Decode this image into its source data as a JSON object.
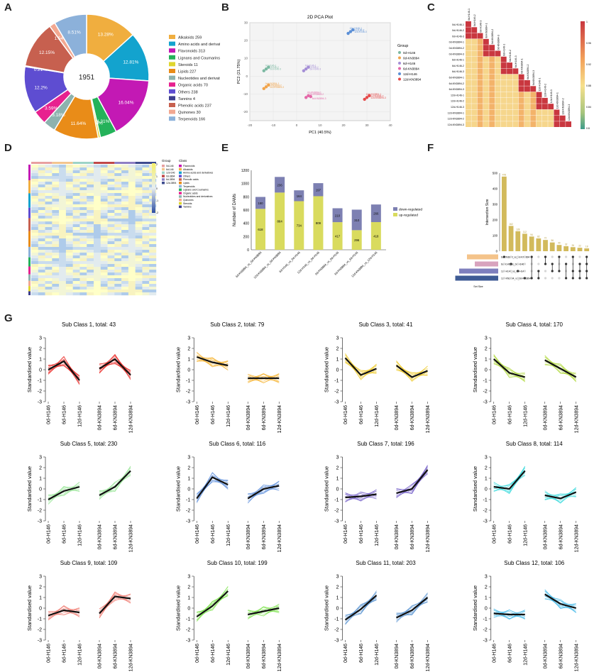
{
  "panel_labels": [
    "A",
    "B",
    "C",
    "D",
    "E",
    "F",
    "G"
  ],
  "colors": {
    "alkaloids": "#F0AE3F",
    "amino": "#13A3CE",
    "flavonoids": "#C319B4",
    "lignans": "#24B25A",
    "steroids": "#DFD62E",
    "lipids": "#E98C18",
    "nucleotides": "#8DB2AE",
    "organic": "#E7218F",
    "others": "#5E4DD1",
    "tannins": "#3C3D8E",
    "phenolic": "#C7604F",
    "quinones": "#F2A891",
    "terpenoids": "#8CB1DA"
  },
  "chart_data": [
    {
      "id": "A",
      "type": "pie",
      "title": "",
      "center_label": "1951",
      "slices": [
        {
          "name": "Alkaloids 259",
          "value": 13.28,
          "label": "13.28%",
          "color": "#F0AE3F"
        },
        {
          "name": "Amino acids and derivatives 250",
          "value": 12.81,
          "label": "12.81%",
          "color": "#13A3CE"
        },
        {
          "name": "Flavonoids 313",
          "value": 16.04,
          "label": "16.04%",
          "color": "#C319B4"
        },
        {
          "name": "Lignans and Coumarins 84",
          "value": 4.31,
          "label": "4.31%",
          "color": "#24B25A"
        },
        {
          "name": "Steroids 11",
          "value": 0.56,
          "label": "0.56%",
          "color": "#DFD62E"
        },
        {
          "name": "Lipids 227",
          "value": 11.64,
          "label": "11.64%",
          "color": "#E98C18"
        },
        {
          "name": "Nucleotides and derivatives 62",
          "value": 3.18,
          "label": "3.18%",
          "color": "#8DB2AE"
        },
        {
          "name": "Organic acids 70",
          "value": 3.59,
          "label": "3.59%",
          "color": "#E7218F"
        },
        {
          "name": "Others 238",
          "value": 12.2,
          "label": "12.2%",
          "color": "#5E4DD1"
        },
        {
          "name": "Tannins 4",
          "value": 0.21,
          "label": "0.21%",
          "color": "#3C3D8E"
        },
        {
          "name": "Phenolic acids 237",
          "value": 12.15,
          "label": "12.15%",
          "color": "#C7604F"
        },
        {
          "name": "Quinones 30",
          "value": 1.54,
          "label": "1.54%",
          "color": "#F2A891"
        },
        {
          "name": "Terpenoids 166",
          "value": 8.51,
          "label": "8.51%",
          "color": "#8CB1DA"
        }
      ]
    },
    {
      "id": "B",
      "type": "scatter",
      "title": "2D PCA Plot",
      "xlabel": "PC1 (40.5%)",
      "ylabel": "PC2 (21.75%)",
      "xlim": [
        -20,
        40
      ],
      "ylim": [
        -25,
        30
      ],
      "xticks": [
        -20,
        -10,
        0,
        10,
        20,
        30,
        40
      ],
      "yticks": [
        -20,
        -10,
        0,
        10,
        20,
        30
      ],
      "legend_title": "Group",
      "series": [
        {
          "name": "0d-H146",
          "color": "#7CB9A2",
          "points": [
            [
              -14,
              3
            ],
            [
              -13,
              4
            ],
            [
              -12,
              5
            ]
          ],
          "labels": [
            "0d-H146-1",
            "0d-H146-2",
            "0d-H146-3"
          ]
        },
        {
          "name": "0d-KN3894",
          "color": "#F1A44B",
          "points": [
            [
              -14,
              -7
            ],
            [
              -13,
              -6
            ],
            [
              -12,
              -5
            ]
          ],
          "labels": [
            "0d-KN3894-1",
            "0d-KN3894-2",
            "0d-KN3894-3"
          ]
        },
        {
          "name": "6d-H146",
          "color": "#A58FD6",
          "points": [
            [
              3,
              3
            ],
            [
              4,
              4
            ],
            [
              5,
              5
            ]
          ],
          "labels": [
            "6d-H146-1",
            "6d-H146-2",
            "6d-H146-3"
          ]
        },
        {
          "name": "6d-KN3894",
          "color": "#E468A8",
          "points": [
            [
              4,
              -12
            ],
            [
              5,
              -11
            ],
            [
              6,
              -11.5
            ]
          ],
          "labels": [
            "6d-KN3894-1",
            "6d-KN3894-2",
            "6d-KN3894-3"
          ]
        },
        {
          "name": "12d-H146",
          "color": "#5B8FD6",
          "points": [
            [
              22,
              24
            ],
            [
              23,
              25
            ],
            [
              24,
              26
            ]
          ],
          "labels": [
            "12d-H146-1",
            "12d-H146-2",
            "12d-H146-3"
          ]
        },
        {
          "name": "12d-KN3894",
          "color": "#E54A4A",
          "points": [
            [
              29,
              -13
            ],
            [
              30,
              -12
            ],
            [
              31,
              -11
            ]
          ],
          "labels": [
            "12d-KN3894-1",
            "12d-KN3894-2",
            "12d-KN3894-3"
          ]
        }
      ]
    },
    {
      "id": "C",
      "type": "heatmap",
      "title": "",
      "labels": [
        "0d-H146-1",
        "0d-H146-2",
        "0d-H146-3",
        "0d-KN3894-1",
        "0d-KN3894-2",
        "0d-KN3894-3",
        "6d-H146-1",
        "6d-H146-2",
        "6d-H146-3",
        "6d-KN3894-1",
        "6d-KN3894-2",
        "6d-KN3894-3",
        "12d-H146-1",
        "12d-H146-2",
        "12d-H146-3",
        "12d-KN3894-1",
        "12d-KN3894-2",
        "12d-KN3894-3"
      ],
      "color_range": [
        0.8,
        1
      ],
      "colorbar_ticks": [
        1,
        0.96,
        0.92,
        0.88,
        0.84,
        0.8
      ]
    },
    {
      "id": "D",
      "type": "heatmap",
      "title": "",
      "legend_group_title": "Group",
      "group_entries": [
        "0d-146",
        "6d-146",
        "12d-146",
        "0d-3894",
        "6d-3894",
        "12d-3894"
      ],
      "group_colors": [
        "#E8A0A0",
        "#F3C58E",
        "#9DD3C7",
        "#C04848",
        "#8E7FC4",
        "#3D4B8E"
      ],
      "legend_class_title": "Class",
      "class_entries": [
        "Flavonoids",
        "Alkaloids",
        "Amino acids and derivatives",
        "Others",
        "Phenolic acids",
        "Lipids",
        "Terpenoids",
        "Lignans and Coumarins",
        "Organic acids",
        "Nucleotides and derivatives",
        "Quinones",
        "Steroids",
        "Tannins"
      ],
      "class_colors": [
        "#C319B4",
        "#F0AE3F",
        "#13A3CE",
        "#5E4DD1",
        "#C7604F",
        "#E98C18",
        "#8CB1DA",
        "#24B25A",
        "#E7218F",
        "#8DB2AE",
        "#F2A891",
        "#DFD62E",
        "#3C3D8E"
      ],
      "colorbar_ticks": [
        "2",
        "1",
        "0",
        "-1",
        "-2"
      ]
    },
    {
      "id": "E",
      "type": "bar",
      "title": "",
      "ylabel": "Number of DAMs",
      "ylim": [
        0,
        1200
      ],
      "yticks": [
        0,
        200,
        400,
        600,
        800,
        1000,
        1200
      ],
      "categories": [
        "6d-KN3894_vs_0d-KN3894",
        "12d-KN3894_vs_0d-KN3894",
        "6d-H146_vs_0d-H146",
        "12d-H146_vs_0d-H146",
        "0d-KN3894_vs_0d-H146",
        "6d-KN3894_vs_6d-H146",
        "12d-KN3894_vs_12d-H146"
      ],
      "series": [
        {
          "name": "up-regulated",
          "color": "#D9DB5E",
          "values": [
            618,
            864,
            734,
            809,
            417,
            296,
            418
          ]
        },
        {
          "name": "down-regulated",
          "color": "#7D80B2",
          "values": [
            180,
            236,
            164,
            197,
            210,
            310,
            266
          ]
        }
      ]
    },
    {
      "id": "F",
      "type": "bar",
      "title": "",
      "ylabel": "Intersection Size",
      "ylim": [
        0,
        500
      ],
      "yticks": [
        0,
        100,
        200,
        300,
        400,
        500
      ],
      "values": [
        478,
        162,
        128,
        112,
        94,
        82,
        72,
        56,
        40,
        32,
        26,
        22,
        18
      ],
      "sets": [
        {
          "name": "6d-KN3894_vs_0d-KN3894",
          "color": "#F4C38A",
          "size": 80
        },
        {
          "name": "6d-H146_vs_0d-H146",
          "color": "#D8A3BE",
          "size": 60
        },
        {
          "name": "12d-H146_vs_0d-H146",
          "color": "#7E7FBE",
          "size": 100
        },
        {
          "name": "12d-KN3894_vs_0d-KN3894",
          "color": "#3F5B95",
          "size": 110
        }
      ],
      "set_axis_label": "Set Size"
    },
    {
      "id": "G",
      "type": "line",
      "ylabel": "Standardised value",
      "ylim": [
        -3,
        3
      ],
      "yticks": [
        -3,
        -2,
        -1,
        0,
        1,
        2,
        3
      ],
      "x": [
        "0d-H146",
        "6d-H146",
        "12d-H146",
        "0d-KN3894",
        "6d-KN3894",
        "12d-KN3894"
      ],
      "panels": [
        {
          "title": "Sub Class 1, total: 43",
          "color": "#E8140F",
          "mean": [
            0,
            0.8,
            -1,
            0.1,
            1,
            -0.5
          ]
        },
        {
          "title": "Sub Class 2, total: 79",
          "color": "#F3A814",
          "mean": [
            1.2,
            0.7,
            0.4,
            -0.8,
            -0.8,
            -0.8
          ]
        },
        {
          "title": "Sub Class 3, total: 41",
          "color": "#EBC20E",
          "mean": [
            1.1,
            -0.5,
            0.1,
            0.4,
            -0.7,
            -0.1
          ]
        },
        {
          "title": "Sub Class 4, total: 170",
          "color": "#A9D62C",
          "mean": [
            1,
            -0.3,
            -0.7,
            0.9,
            0.1,
            -0.7
          ]
        },
        {
          "title": "Sub Class 5, total: 230",
          "color": "#8EE38D",
          "mean": [
            -1,
            -0.2,
            0.2,
            -0.6,
            0.2,
            1.7
          ]
        },
        {
          "title": "Sub Class 6, total: 116",
          "color": "#4E84D8",
          "mean": [
            -0.9,
            1.1,
            0.4,
            -0.9,
            0,
            0.3
          ]
        },
        {
          "title": "Sub Class 7, total: 196",
          "color": "#6A52C4",
          "mean": [
            -0.8,
            -0.7,
            -0.5,
            -0.4,
            0,
            1.8
          ]
        },
        {
          "title": "Sub Class 8, total: 114",
          "color": "#23D6D9",
          "mean": [
            0.2,
            0,
            1.7,
            -0.6,
            -0.9,
            -0.3
          ]
        },
        {
          "title": "Sub Class 9, total: 109",
          "color": "#EE6D62",
          "mean": [
            -0.7,
            -0.2,
            -0.4,
            -0.5,
            1.1,
            0.9
          ]
        },
        {
          "title": "Sub Class 10, total: 199",
          "color": "#6FE03A",
          "mean": [
            -0.8,
            0.2,
            1.6,
            -0.6,
            -0.3,
            0
          ]
        },
        {
          "title": "Sub Class 11, total: 203",
          "color": "#4A8ACD",
          "mean": [
            -1.1,
            -0.1,
            1.2,
            -0.9,
            -0.2,
            1
          ]
        },
        {
          "title": "Sub Class 12, total: 106",
          "color": "#2EB1E6",
          "mean": [
            -0.5,
            -0.6,
            -0.6,
            1.3,
            0.4,
            0
          ]
        }
      ]
    }
  ]
}
